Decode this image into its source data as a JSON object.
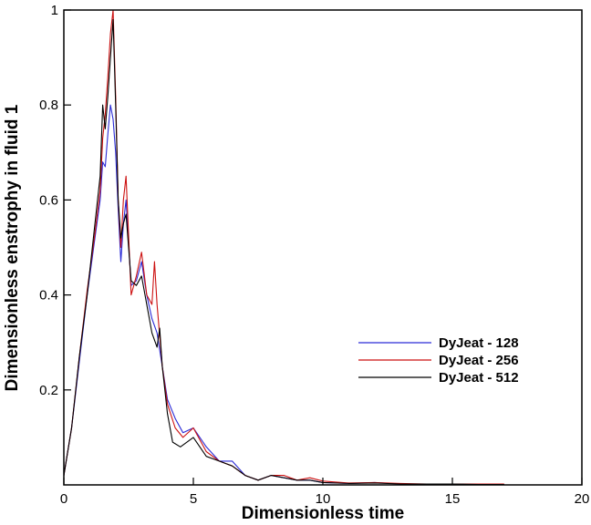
{
  "chart_data": {
    "type": "line",
    "xlabel": "Dimensionless time",
    "ylabel": "Dimensionless enstrophy in fluid 1",
    "xlim": [
      0,
      20
    ],
    "ylim": [
      0,
      1
    ],
    "x_ticks": [
      0,
      5,
      10,
      15,
      20
    ],
    "x_tick_labels": [
      "0",
      "5",
      "10",
      "15",
      "20"
    ],
    "y_ticks": [
      0.2,
      0.4,
      0.6,
      0.8,
      1
    ],
    "y_tick_labels": [
      "0.2",
      "0.4",
      "0.6",
      "0.8",
      "1"
    ],
    "grid": false,
    "legend_position": "right",
    "series": [
      {
        "name": "DyJeat - 128",
        "color": "#2a2ad6",
        "x": [
          0,
          0.3,
          0.6,
          0.9,
          1.2,
          1.4,
          1.5,
          1.6,
          1.7,
          1.8,
          1.9,
          2.0,
          2.1,
          2.2,
          2.3,
          2.4,
          2.6,
          2.8,
          3.0,
          3.2,
          3.4,
          3.6,
          3.8,
          4.0,
          4.3,
          4.6,
          5.0,
          5.5,
          6.0,
          6.5,
          7.0,
          7.5,
          8.0,
          8.5,
          9.0,
          9.5,
          10.0,
          11,
          12,
          13,
          14,
          15,
          16,
          17
        ],
        "values": [
          0.02,
          0.12,
          0.26,
          0.4,
          0.52,
          0.6,
          0.68,
          0.67,
          0.74,
          0.8,
          0.77,
          0.7,
          0.58,
          0.47,
          0.55,
          0.6,
          0.42,
          0.43,
          0.47,
          0.4,
          0.35,
          0.32,
          0.25,
          0.18,
          0.14,
          0.11,
          0.12,
          0.08,
          0.05,
          0.05,
          0.02,
          0.01,
          0.02,
          0.015,
          0.01,
          0.01,
          0.005,
          0.003,
          0.005,
          0.002,
          0.002,
          0.002,
          0.001,
          0.001
        ]
      },
      {
        "name": "DyJeat - 256",
        "color": "#cc1111",
        "x": [
          0,
          0.3,
          0.6,
          0.9,
          1.2,
          1.4,
          1.5,
          1.6,
          1.7,
          1.8,
          1.9,
          2.0,
          2.1,
          2.2,
          2.3,
          2.4,
          2.6,
          2.8,
          3.0,
          3.2,
          3.4,
          3.5,
          3.6,
          3.8,
          4.0,
          4.3,
          4.6,
          5.0,
          5.5,
          6.0,
          6.5,
          7.0,
          7.5,
          8.0,
          8.5,
          9.0,
          9.5,
          10.0,
          11,
          12,
          13,
          14,
          15,
          16,
          17
        ],
        "values": [
          0.02,
          0.12,
          0.27,
          0.41,
          0.53,
          0.62,
          0.73,
          0.78,
          0.86,
          0.95,
          1.0,
          0.82,
          0.6,
          0.5,
          0.6,
          0.65,
          0.4,
          0.44,
          0.49,
          0.4,
          0.38,
          0.47,
          0.38,
          0.25,
          0.17,
          0.12,
          0.1,
          0.12,
          0.07,
          0.05,
          0.04,
          0.02,
          0.01,
          0.02,
          0.02,
          0.01,
          0.015,
          0.008,
          0.004,
          0.005,
          0.003,
          0.002,
          0.002,
          0.002,
          0.002
        ]
      },
      {
        "name": "DyJeat - 512",
        "color": "#000000",
        "x": [
          0,
          0.3,
          0.6,
          0.9,
          1.2,
          1.4,
          1.5,
          1.6,
          1.7,
          1.8,
          1.9,
          2.0,
          2.1,
          2.2,
          2.3,
          2.4,
          2.6,
          2.8,
          3.0,
          3.2,
          3.4,
          3.6,
          3.7,
          3.8,
          4.0,
          4.2,
          4.5,
          5.0,
          5.5,
          6.0,
          6.5,
          7.0,
          7.5,
          8.0,
          8.5,
          9.0,
          9.5,
          10.0,
          11,
          12,
          13,
          14,
          15,
          16,
          17
        ],
        "values": [
          0.02,
          0.12,
          0.27,
          0.4,
          0.55,
          0.65,
          0.8,
          0.75,
          0.82,
          0.9,
          0.98,
          0.8,
          0.6,
          0.52,
          0.55,
          0.57,
          0.43,
          0.42,
          0.44,
          0.38,
          0.32,
          0.29,
          0.33,
          0.25,
          0.15,
          0.09,
          0.08,
          0.1,
          0.06,
          0.05,
          0.04,
          0.02,
          0.01,
          0.02,
          0.015,
          0.01,
          0.01,
          0.005,
          0.003,
          0.004,
          0.002,
          0.002,
          0.002,
          0.001,
          0.001
        ]
      }
    ]
  }
}
